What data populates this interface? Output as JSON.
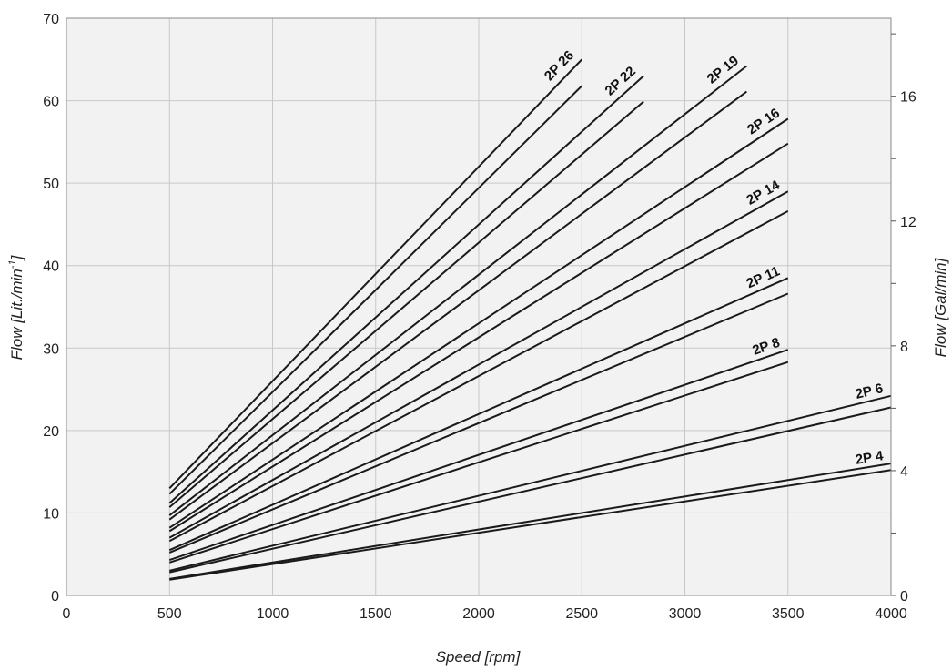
{
  "chart_data": {
    "type": "line",
    "xlabel": "Speed [rpm]",
    "ylabel": "Flow [Lit./min",
    "ylabel_superscript": "-1",
    "ylabel_close": "]",
    "y2label": "Flow [Gal/min]",
    "xlim": [
      0,
      4000
    ],
    "ylim": [
      0,
      70
    ],
    "y2lim": [
      0,
      18.5
    ],
    "xticks": [
      0,
      500,
      1000,
      1500,
      2000,
      2500,
      3000,
      3500,
      4000
    ],
    "yticks": [
      0,
      10,
      20,
      30,
      40,
      50,
      60,
      70
    ],
    "y2ticks": [
      0,
      4,
      8,
      12,
      16
    ],
    "grid": true,
    "colors": {
      "background": "#f2f2f2",
      "grid": "#c8c8c8",
      "line": "#1a1a1a",
      "frame": "#888888"
    },
    "series": [
      {
        "label": "2P 26",
        "curves": [
          {
            "x": [
              500,
              2500
            ],
            "y": [
              13.0,
              65.0
            ]
          },
          {
            "x": [
              500,
              2500
            ],
            "y": [
              12.3,
              61.8
            ]
          }
        ]
      },
      {
        "label": "2P 22",
        "curves": [
          {
            "x": [
              500,
              2800
            ],
            "y": [
              11.2,
              63.0
            ]
          },
          {
            "x": [
              500,
              2800
            ],
            "y": [
              10.7,
              59.9
            ]
          }
        ]
      },
      {
        "label": "2P 19",
        "curves": [
          {
            "x": [
              500,
              3300
            ],
            "y": [
              9.7,
              64.2
            ]
          },
          {
            "x": [
              500,
              3300
            ],
            "y": [
              9.2,
              61.1
            ]
          }
        ]
      },
      {
        "label": "2P 16",
        "curves": [
          {
            "x": [
              500,
              3500
            ],
            "y": [
              8.2,
              57.8
            ]
          },
          {
            "x": [
              500,
              3500
            ],
            "y": [
              7.8,
              54.8
            ]
          }
        ]
      },
      {
        "label": "2P 14",
        "curves": [
          {
            "x": [
              500,
              3500
            ],
            "y": [
              7.0,
              49.0
            ]
          },
          {
            "x": [
              500,
              3500
            ],
            "y": [
              6.6,
              46.6
            ]
          }
        ]
      },
      {
        "label": "2P 11",
        "curves": [
          {
            "x": [
              500,
              3500
            ],
            "y": [
              5.5,
              38.5
            ]
          },
          {
            "x": [
              500,
              3500
            ],
            "y": [
              5.2,
              36.6
            ]
          }
        ]
      },
      {
        "label": "2P 8",
        "curves": [
          {
            "x": [
              500,
              3500
            ],
            "y": [
              4.3,
              29.8
            ]
          },
          {
            "x": [
              500,
              3500
            ],
            "y": [
              4.0,
              28.3
            ]
          }
        ]
      },
      {
        "label": "2P 6",
        "curves": [
          {
            "x": [
              500,
              4000
            ],
            "y": [
              3.0,
              24.2
            ]
          },
          {
            "x": [
              500,
              4000
            ],
            "y": [
              2.8,
              22.8
            ]
          }
        ]
      },
      {
        "label": "2P 4",
        "curves": [
          {
            "x": [
              500,
              4000
            ],
            "y": [
              2.0,
              16.0
            ]
          },
          {
            "x": [
              500,
              4000
            ],
            "y": [
              1.9,
              15.2
            ]
          }
        ]
      }
    ]
  }
}
